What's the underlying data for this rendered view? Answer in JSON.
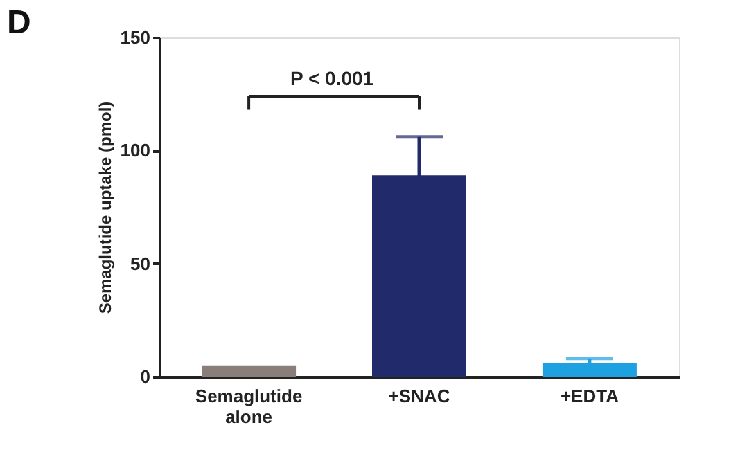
{
  "chart_data": {
    "type": "bar",
    "title": "D",
    "ylabel": "Semaglutide uptake (pmol)",
    "categories": [
      "Semaglutide alone",
      "+SNAC",
      "+EDTA"
    ],
    "values": [
      5,
      89,
      6
    ],
    "errors": [
      null,
      17,
      2
    ],
    "colors": [
      "#8a7f78",
      "#212a6b",
      "#1da1e0"
    ],
    "ylim": [
      0,
      150
    ],
    "yticks": [
      0,
      50,
      100,
      150
    ],
    "grid": false,
    "annotations": [
      "P < 0.001"
    ]
  }
}
